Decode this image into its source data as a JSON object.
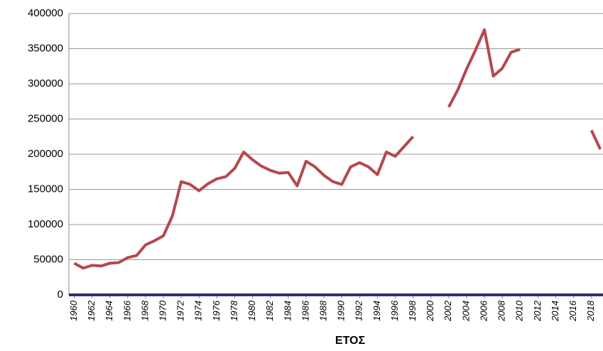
{
  "chart_data": {
    "type": "line",
    "x_label": "ΕΤΟΣ",
    "x": [
      1960,
      1961,
      1962,
      1963,
      1964,
      1965,
      1966,
      1967,
      1968,
      1969,
      1970,
      1971,
      1972,
      1973,
      1974,
      1975,
      1976,
      1977,
      1978,
      1979,
      1980,
      1981,
      1982,
      1983,
      1984,
      1985,
      1986,
      1987,
      1988,
      1989,
      1990,
      1991,
      1992,
      1993,
      1994,
      1995,
      1996,
      1997,
      1998,
      1999,
      2000,
      2001,
      2002,
      2003,
      2004,
      2005,
      2006,
      2007,
      2008,
      2009,
      2010,
      2011,
      2012,
      2013,
      2014,
      2015,
      2016,
      2017,
      2018,
      2019
    ],
    "series": [
      {
        "color": "#b5484d",
        "values": [
          45000,
          38000,
          42000,
          41000,
          45000,
          46000,
          53000,
          56000,
          71000,
          77000,
          84000,
          112000,
          161000,
          157000,
          148000,
          158000,
          165000,
          168000,
          180000,
          203000,
          192000,
          183000,
          177000,
          173000,
          174000,
          155000,
          190000,
          182000,
          170000,
          161000,
          157000,
          182000,
          188000,
          182000,
          171000,
          203000,
          197000,
          211000,
          225000,
          null,
          null,
          null,
          267000,
          291000,
          321000,
          348000,
          377000,
          311000,
          322000,
          345000,
          349000,
          null,
          null,
          null,
          null,
          null,
          null,
          null,
          234000,
          207000
        ]
      }
    ],
    "xlim": [
      1959.4,
      2019.3
    ],
    "xticks": [
      1960,
      1962,
      1964,
      1966,
      1968,
      1970,
      1972,
      1974,
      1976,
      1978,
      1980,
      1982,
      1984,
      1986,
      1988,
      1990,
      1992,
      1994,
      1996,
      1998,
      2000,
      2002,
      2004,
      2006,
      2008,
      2010,
      2012,
      2014,
      2016,
      2018
    ],
    "ylim": [
      0,
      400000
    ],
    "yticks": [
      0,
      50000,
      100000,
      150000,
      200000,
      250000,
      300000,
      350000,
      400000
    ],
    "grid": true
  }
}
